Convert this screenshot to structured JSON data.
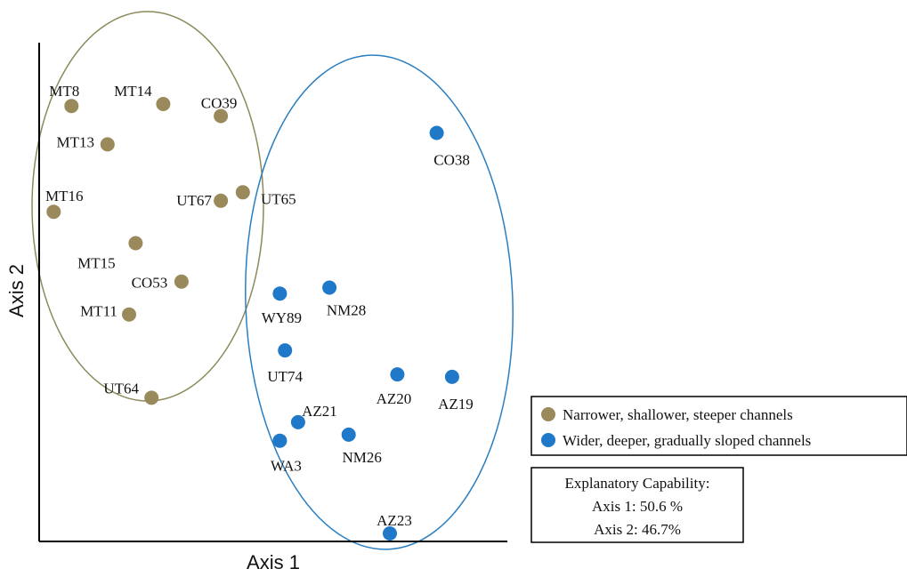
{
  "chart_data": {
    "type": "scatter",
    "xlabel": "Axis 1",
    "ylabel": "Axis 2",
    "xlim": [
      0,
      100
    ],
    "ylim": [
      0,
      100
    ],
    "series": [
      {
        "name": "Narrower, shallower, steeper channels",
        "color": "#9a8a5b",
        "ellipse_color": "#8a8a5a",
        "points": [
          {
            "label": "MT8",
            "x": 6.9,
            "y": 87.3
          },
          {
            "label": "MT14",
            "x": 26.5,
            "y": 87.7
          },
          {
            "label": "CO39",
            "x": 38.8,
            "y": 85.3
          },
          {
            "label": "MT13",
            "x": 14.6,
            "y": 79.6
          },
          {
            "label": "UT67",
            "x": 38.8,
            "y": 68.3
          },
          {
            "label": "UT65",
            "x": 43.5,
            "y": 70.0
          },
          {
            "label": "MT16",
            "x": 3.1,
            "y": 66.1
          },
          {
            "label": "MT15",
            "x": 20.6,
            "y": 59.8
          },
          {
            "label": "CO53",
            "x": 30.4,
            "y": 52.1
          },
          {
            "label": "MT11",
            "x": 19.2,
            "y": 45.5
          },
          {
            "label": "UT64",
            "x": 24.0,
            "y": 28.8
          }
        ]
      },
      {
        "name": "Wider, deeper, gradually sloped channels",
        "color": "#1f78c8",
        "ellipse_color": "#2b7fc0",
        "points": [
          {
            "label": "CO38",
            "x": 84.9,
            "y": 81.9
          },
          {
            "label": "WY89",
            "x": 51.4,
            "y": 49.7
          },
          {
            "label": "NM28",
            "x": 62.0,
            "y": 50.9
          },
          {
            "label": "UT74",
            "x": 52.5,
            "y": 38.3
          },
          {
            "label": "AZ20",
            "x": 76.5,
            "y": 33.5
          },
          {
            "label": "AZ19",
            "x": 88.2,
            "y": 33.0
          },
          {
            "label": "AZ21",
            "x": 55.3,
            "y": 23.9
          },
          {
            "label": "NM26",
            "x": 66.1,
            "y": 21.4
          },
          {
            "label": "WA3",
            "x": 51.4,
            "y": 20.2
          },
          {
            "label": "AZ23",
            "x": 74.9,
            "y": 1.6
          }
        ]
      }
    ],
    "explanatory_box": {
      "title": "Explanatory Capability:",
      "lines": [
        "Axis 1: 50.6 %",
        "Axis 2: 46.7%"
      ]
    },
    "legend_position": "right"
  }
}
